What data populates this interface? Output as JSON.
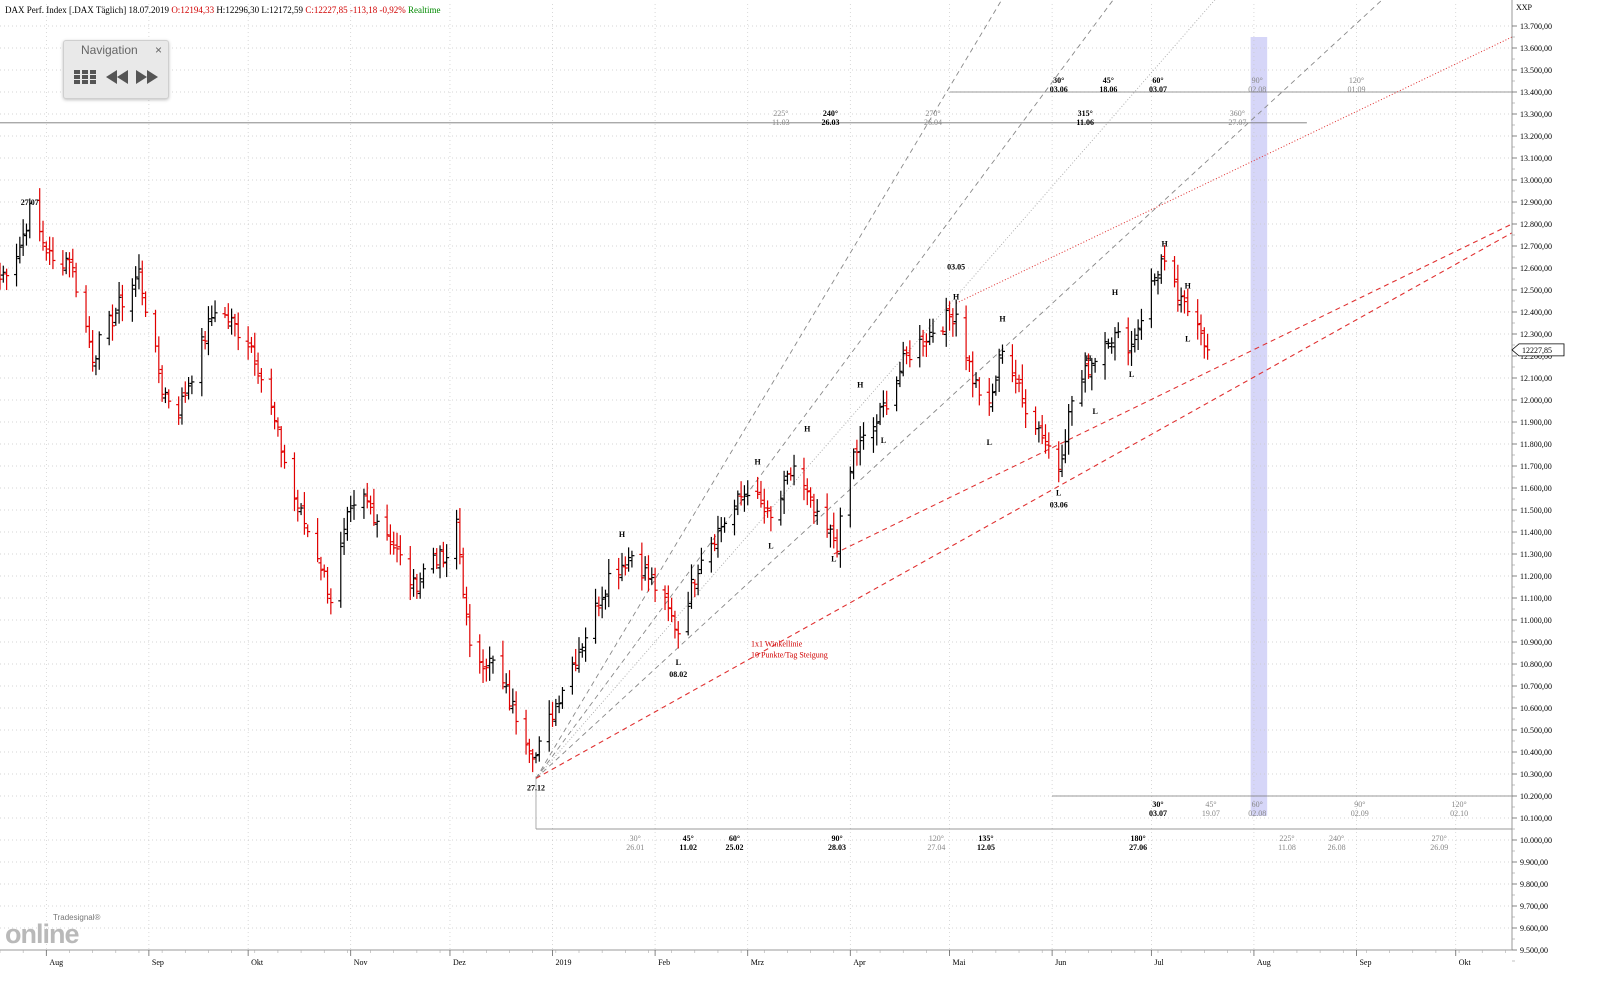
{
  "header": {
    "instrument": "DAX Perf. Index [.DAX Täglich] 18.07.2019",
    "open": "O:12194,33",
    "high": "H:12296,30",
    "low": "L:12172,59",
    "close": "C:12227,85",
    "change": "-113,18",
    "change_pct": "-0,92%",
    "mode": "Realtime"
  },
  "navigation": {
    "title": "Navigation",
    "close": "×"
  },
  "logo": {
    "brand_small": "Tradesignal®",
    "brand_large": "online"
  },
  "chart_data": {
    "type": "ohlc",
    "title": "DAX Perf. Index [.DAX Täglich] 18.07.2019",
    "y_axis_label": "XXP",
    "ylim": [
      9500,
      13800
    ],
    "y_ticks": [
      13700,
      13600,
      13500,
      13400,
      13300,
      13200,
      13100,
      13000,
      12900,
      12800,
      12700,
      12600,
      12500,
      12400,
      12300,
      12200,
      12100,
      12000,
      11900,
      11800,
      11700,
      11600,
      11500,
      11400,
      11300,
      11200,
      11100,
      11000,
      10900,
      10800,
      10700,
      10600,
      10500,
      10400,
      10300,
      10200,
      10100,
      10000,
      9900,
      9800,
      9700,
      9600,
      9500
    ],
    "y_tick_labels": [
      "13.700,00",
      "13.600,00",
      "13.500,00",
      "13.400,00",
      "13.300,00",
      "13.200,00",
      "13.100,00",
      "13.000,00",
      "12.900,00",
      "12.800,00",
      "12.700,00",
      "12.600,00",
      "12.500,00",
      "12.400,00",
      "12.300,00",
      "12.200,00",
      "12.100,00",
      "12.000,00",
      "11.900,00",
      "11.800,00",
      "11.700,00",
      "11.600,00",
      "11.500,00",
      "11.400,00",
      "11.300,00",
      "11.200,00",
      "11.100,00",
      "11.000,00",
      "10.900,00",
      "10.800,00",
      "10.700,00",
      "10.600,00",
      "10.500,00",
      "10.400,00",
      "10.300,00",
      "10.200,00",
      "10.100,00",
      "10.000,00",
      "9.900,00",
      "9.800,00",
      "9.700,00",
      "9.600,00",
      "9.500,00"
    ],
    "last_price_label": "12227,85",
    "last_price": 12227.85,
    "x_axis": {
      "start": "2018-07-18",
      "end": "2019-10-18",
      "months": [
        {
          "label": "Aug",
          "date": "2018-08-01"
        },
        {
          "label": "Sep",
          "date": "2018-09-01"
        },
        {
          "label": "Okt",
          "date": "2018-10-01"
        },
        {
          "label": "Nov",
          "date": "2018-11-01"
        },
        {
          "label": "Dez",
          "date": "2018-12-01"
        },
        {
          "label": "2019",
          "date": "2019-01-01"
        },
        {
          "label": "Feb",
          "date": "2019-02-01"
        },
        {
          "label": "Mrz",
          "date": "2019-03-01"
        },
        {
          "label": "Apr",
          "date": "2019-04-01"
        },
        {
          "label": "Mai",
          "date": "2019-05-01"
        },
        {
          "label": "Jun",
          "date": "2019-06-01"
        },
        {
          "label": "Jul",
          "date": "2019-07-01"
        },
        {
          "label": "Aug",
          "date": "2019-08-01"
        },
        {
          "label": "Sep",
          "date": "2019-09-01"
        },
        {
          "label": "Okt",
          "date": "2019-10-01"
        }
      ]
    },
    "grid": true,
    "price_path": [
      {
        "date": "2018-07-18",
        "close": 12550
      },
      {
        "date": "2018-07-24",
        "close": 12700
      },
      {
        "date": "2018-07-27",
        "close": 12860
      },
      {
        "date": "2018-08-03",
        "close": 12620
      },
      {
        "date": "2018-08-08",
        "close": 12650
      },
      {
        "date": "2018-08-15",
        "close": 12200
      },
      {
        "date": "2018-08-22",
        "close": 12400
      },
      {
        "date": "2018-08-29",
        "close": 12580
      },
      {
        "date": "2018-09-05",
        "close": 12050
      },
      {
        "date": "2018-09-10",
        "close": 11950
      },
      {
        "date": "2018-09-14",
        "close": 12120
      },
      {
        "date": "2018-09-21",
        "close": 12420
      },
      {
        "date": "2018-09-26",
        "close": 12350
      },
      {
        "date": "2018-10-02",
        "close": 12250
      },
      {
        "date": "2018-10-08",
        "close": 11950
      },
      {
        "date": "2018-10-15",
        "close": 11550
      },
      {
        "date": "2018-10-22",
        "close": 11300
      },
      {
        "date": "2018-10-26",
        "close": 11100
      },
      {
        "date": "2018-10-31",
        "close": 11450
      },
      {
        "date": "2018-11-05",
        "close": 11550
      },
      {
        "date": "2018-11-12",
        "close": 11400
      },
      {
        "date": "2018-11-20",
        "close": 11150
      },
      {
        "date": "2018-11-26",
        "close": 11300
      },
      {
        "date": "2018-11-30",
        "close": 11250
      },
      {
        "date": "2018-12-03",
        "close": 11450
      },
      {
        "date": "2018-12-07",
        "close": 10850
      },
      {
        "date": "2018-12-14",
        "close": 10800
      },
      {
        "date": "2018-12-20",
        "close": 10600
      },
      {
        "date": "2018-12-27",
        "close": 10380
      },
      {
        "date": "2019-01-04",
        "close": 10700
      },
      {
        "date": "2019-01-10",
        "close": 10900
      },
      {
        "date": "2019-01-18",
        "close": 11200
      },
      {
        "date": "2019-01-25",
        "close": 11300
      },
      {
        "date": "2019-02-01",
        "close": 11150
      },
      {
        "date": "2019-02-08",
        "close": 10950
      },
      {
        "date": "2019-02-15",
        "close": 11300
      },
      {
        "date": "2019-02-22",
        "close": 11450
      },
      {
        "date": "2019-03-01",
        "close": 11600
      },
      {
        "date": "2019-03-08",
        "close": 11450
      },
      {
        "date": "2019-03-15",
        "close": 11700
      },
      {
        "date": "2019-03-22",
        "close": 11450
      },
      {
        "date": "2019-03-28",
        "close": 11350
      },
      {
        "date": "2019-04-02",
        "close": 11750
      },
      {
        "date": "2019-04-09",
        "close": 11900
      },
      {
        "date": "2019-04-18",
        "close": 12200
      },
      {
        "date": "2019-04-26",
        "close": 12320
      },
      {
        "date": "2019-05-03",
        "close": 12400
      },
      {
        "date": "2019-05-08",
        "close": 12100
      },
      {
        "date": "2019-05-13",
        "close": 11950
      },
      {
        "date": "2019-05-17",
        "close": 12250
      },
      {
        "date": "2019-05-23",
        "close": 12000
      },
      {
        "date": "2019-05-29",
        "close": 11850
      },
      {
        "date": "2019-06-03",
        "close": 11700
      },
      {
        "date": "2019-06-07",
        "close": 12000
      },
      {
        "date": "2019-06-12",
        "close": 12150
      },
      {
        "date": "2019-06-18",
        "close": 12300
      },
      {
        "date": "2019-06-25",
        "close": 12250
      },
      {
        "date": "2019-07-01",
        "close": 12520
      },
      {
        "date": "2019-07-04",
        "close": 12630
      },
      {
        "date": "2019-07-10",
        "close": 12430
      },
      {
        "date": "2019-07-15",
        "close": 12380
      },
      {
        "date": "2019-07-18",
        "close": 12227.85
      }
    ],
    "point_labels": [
      {
        "text": "27.07",
        "date": "2018-07-27",
        "price": 12860,
        "pos": "above"
      },
      {
        "text": "27.12",
        "date": "2018-12-27",
        "price": 10280,
        "pos": "below"
      },
      {
        "text": "H",
        "date": "2019-01-22",
        "price": 11350,
        "pos": "above"
      },
      {
        "text": "L",
        "date": "2019-02-08",
        "price": 10850,
        "pos": "below"
      },
      {
        "text": "08.02",
        "date": "2019-02-08",
        "price": 10850,
        "pos": "below2"
      },
      {
        "text": "H",
        "date": "2019-03-04",
        "price": 11680,
        "pos": "above"
      },
      {
        "text": "L",
        "date": "2019-03-08",
        "price": 11380,
        "pos": "below"
      },
      {
        "text": "H",
        "date": "2019-03-19",
        "price": 11830,
        "pos": "above"
      },
      {
        "text": "L",
        "date": "2019-03-27",
        "price": 11320,
        "pos": "below"
      },
      {
        "text": "H",
        "date": "2019-04-04",
        "price": 12030,
        "pos": "above"
      },
      {
        "text": "L",
        "date": "2019-04-11",
        "price": 11860,
        "pos": "below"
      },
      {
        "text": "03.05",
        "date": "2019-05-03",
        "price": 12520,
        "pos": "above2"
      },
      {
        "text": "H",
        "date": "2019-05-03",
        "price": 12430,
        "pos": "above"
      },
      {
        "text": "L",
        "date": "2019-05-13",
        "price": 11850,
        "pos": "below"
      },
      {
        "text": "H",
        "date": "2019-05-17",
        "price": 12330,
        "pos": "above"
      },
      {
        "text": "L",
        "date": "2019-06-03",
        "price": 11620,
        "pos": "below"
      },
      {
        "text": "03.06",
        "date": "2019-06-03",
        "price": 11620,
        "pos": "below2"
      },
      {
        "text": "H",
        "date": "2019-06-12",
        "price": 12150,
        "pos": "above"
      },
      {
        "text": "L",
        "date": "2019-06-14",
        "price": 11990,
        "pos": "below"
      },
      {
        "text": "H",
        "date": "2019-06-20",
        "price": 12450,
        "pos": "above"
      },
      {
        "text": "L",
        "date": "2019-06-25",
        "price": 12160,
        "pos": "below"
      },
      {
        "text": "H",
        "date": "2019-07-05",
        "price": 12670,
        "pos": "above"
      },
      {
        "text": "H",
        "date": "2019-07-12",
        "price": 12480,
        "pos": "above"
      },
      {
        "text": "L",
        "date": "2019-07-12",
        "price": 12320,
        "pos": "below"
      }
    ],
    "annotations": [
      {
        "text": "1x1 Winkellinie",
        "date": "2019-03-02",
        "price": 10880,
        "color": "#d00000"
      },
      {
        "text": "10 Punkte/Tag Steigung",
        "date": "2019-03-02",
        "price": 10830,
        "color": "#d00000"
      }
    ],
    "fan_lines": [
      {
        "from": {
          "date": "2018-12-27",
          "price": 10280
        },
        "to": {
          "date": "2019-05-18",
          "price": 13850
        },
        "style": "gray-dashed"
      },
      {
        "from": {
          "date": "2018-12-27",
          "price": 10280
        },
        "to": {
          "date": "2019-06-21",
          "price": 13850
        },
        "style": "gray-dashed"
      },
      {
        "from": {
          "date": "2018-12-27",
          "price": 10280
        },
        "to": {
          "date": "2019-07-22",
          "price": 13850
        },
        "style": "gray-dotted"
      },
      {
        "from": {
          "date": "2018-12-27",
          "price": 10280
        },
        "to": {
          "date": "2019-09-11",
          "price": 13850
        },
        "style": "gray-dashed"
      },
      {
        "from": {
          "date": "2018-12-27",
          "price": 10280
        },
        "to": {
          "date": "2019-10-18",
          "price": 12760
        },
        "style": "red-dashed"
      },
      {
        "from": {
          "date": "2019-03-27",
          "price": 11300
        },
        "to": {
          "date": "2019-10-18",
          "price": 12800
        },
        "style": "red-dashed"
      },
      {
        "from": {
          "date": "2019-05-03",
          "price": 12440
        },
        "to": {
          "date": "2019-10-18",
          "price": 13650
        },
        "style": "red-dotted"
      }
    ],
    "horizontal_lines": [
      {
        "price": 13260,
        "from": "2018-07-18",
        "to": "2019-08-17",
        "style": "gray-solid"
      },
      {
        "price": 13400,
        "from": "2019-05-01",
        "to": "2019-10-18",
        "style": "gray-solid"
      },
      {
        "price": 10200,
        "from": "2019-06-01",
        "to": "2019-10-18",
        "style": "gray-solid"
      },
      {
        "price": 10050,
        "from": "2018-12-27",
        "to": "2019-10-18",
        "style": "gray-solid"
      }
    ],
    "highlight_band": {
      "from": "2019-07-31",
      "to": "2019-08-05",
      "color": "#c8c8f5"
    },
    "cycle_labels": [
      {
        "deg": "225°",
        "date_text": "11.03",
        "date": "2019-03-11",
        "price": 13290,
        "bold": false
      },
      {
        "deg": "240°",
        "date_text": "26.03",
        "date": "2019-03-26",
        "price": 13290,
        "bold": true
      },
      {
        "deg": "270°",
        "date_text": "26.04",
        "date": "2019-04-26",
        "price": 13290,
        "bold": false
      },
      {
        "deg": "315°",
        "date_text": "11.06",
        "date": "2019-06-11",
        "price": 13290,
        "bold": true
      },
      {
        "deg": "360°",
        "date_text": "27.07",
        "date": "2019-07-27",
        "price": 13290,
        "bold": false
      },
      {
        "deg": "30°",
        "date_text": "03.06",
        "date": "2019-06-03",
        "price": 13440,
        "bold": true
      },
      {
        "deg": "45°",
        "date_text": "18.06",
        "date": "2019-06-18",
        "price": 13440,
        "bold": true
      },
      {
        "deg": "60°",
        "date_text": "03.07",
        "date": "2019-07-03",
        "price": 13440,
        "bold": true
      },
      {
        "deg": "90°",
        "date_text": "02.08",
        "date": "2019-08-02",
        "price": 13440,
        "bold": false
      },
      {
        "deg": "120°",
        "date_text": "01.09",
        "date": "2019-09-01",
        "price": 13440,
        "bold": false
      },
      {
        "deg": "30°",
        "date_text": "03.07",
        "date": "2019-07-03",
        "price": 10150,
        "bold": true
      },
      {
        "deg": "45°",
        "date_text": "19.07",
        "date": "2019-07-19",
        "price": 10150,
        "bold": false
      },
      {
        "deg": "60°",
        "date_text": "02.08",
        "date": "2019-08-02",
        "price": 10150,
        "bold": false
      },
      {
        "deg": "90°",
        "date_text": "02.09",
        "date": "2019-09-02",
        "price": 10150,
        "bold": false
      },
      {
        "deg": "120°",
        "date_text": "02.10",
        "date": "2019-10-02",
        "price": 10150,
        "bold": false
      },
      {
        "deg": "30°",
        "date_text": "26.01",
        "date": "2019-01-26",
        "price": 9995,
        "bold": false
      },
      {
        "deg": "45°",
        "date_text": "11.02",
        "date": "2019-02-11",
        "price": 9995,
        "bold": true
      },
      {
        "deg": "60°",
        "date_text": "25.02",
        "date": "2019-02-25",
        "price": 9995,
        "bold": true
      },
      {
        "deg": "90°",
        "date_text": "28.03",
        "date": "2019-03-28",
        "price": 9995,
        "bold": true
      },
      {
        "deg": "120°",
        "date_text": "27.04",
        "date": "2019-04-27",
        "price": 9995,
        "bold": false
      },
      {
        "deg": "135°",
        "date_text": "12.05",
        "date": "2019-05-12",
        "price": 9995,
        "bold": true
      },
      {
        "deg": "180°",
        "date_text": "27.06",
        "date": "2019-06-27",
        "price": 9995,
        "bold": true
      },
      {
        "deg": "225°",
        "date_text": "11.08",
        "date": "2019-08-11",
        "price": 9995,
        "bold": false
      },
      {
        "deg": "240°",
        "date_text": "26.08",
        "date": "2019-08-26",
        "price": 9995,
        "bold": false
      },
      {
        "deg": "270°",
        "date_text": "26.09",
        "date": "2019-09-26",
        "price": 9995,
        "bold": false
      }
    ],
    "colors": {
      "up": "#000000",
      "down": "#e00000",
      "grid": "#c9c9c9",
      "gann": "#888888",
      "red_line": "#e03030"
    }
  }
}
